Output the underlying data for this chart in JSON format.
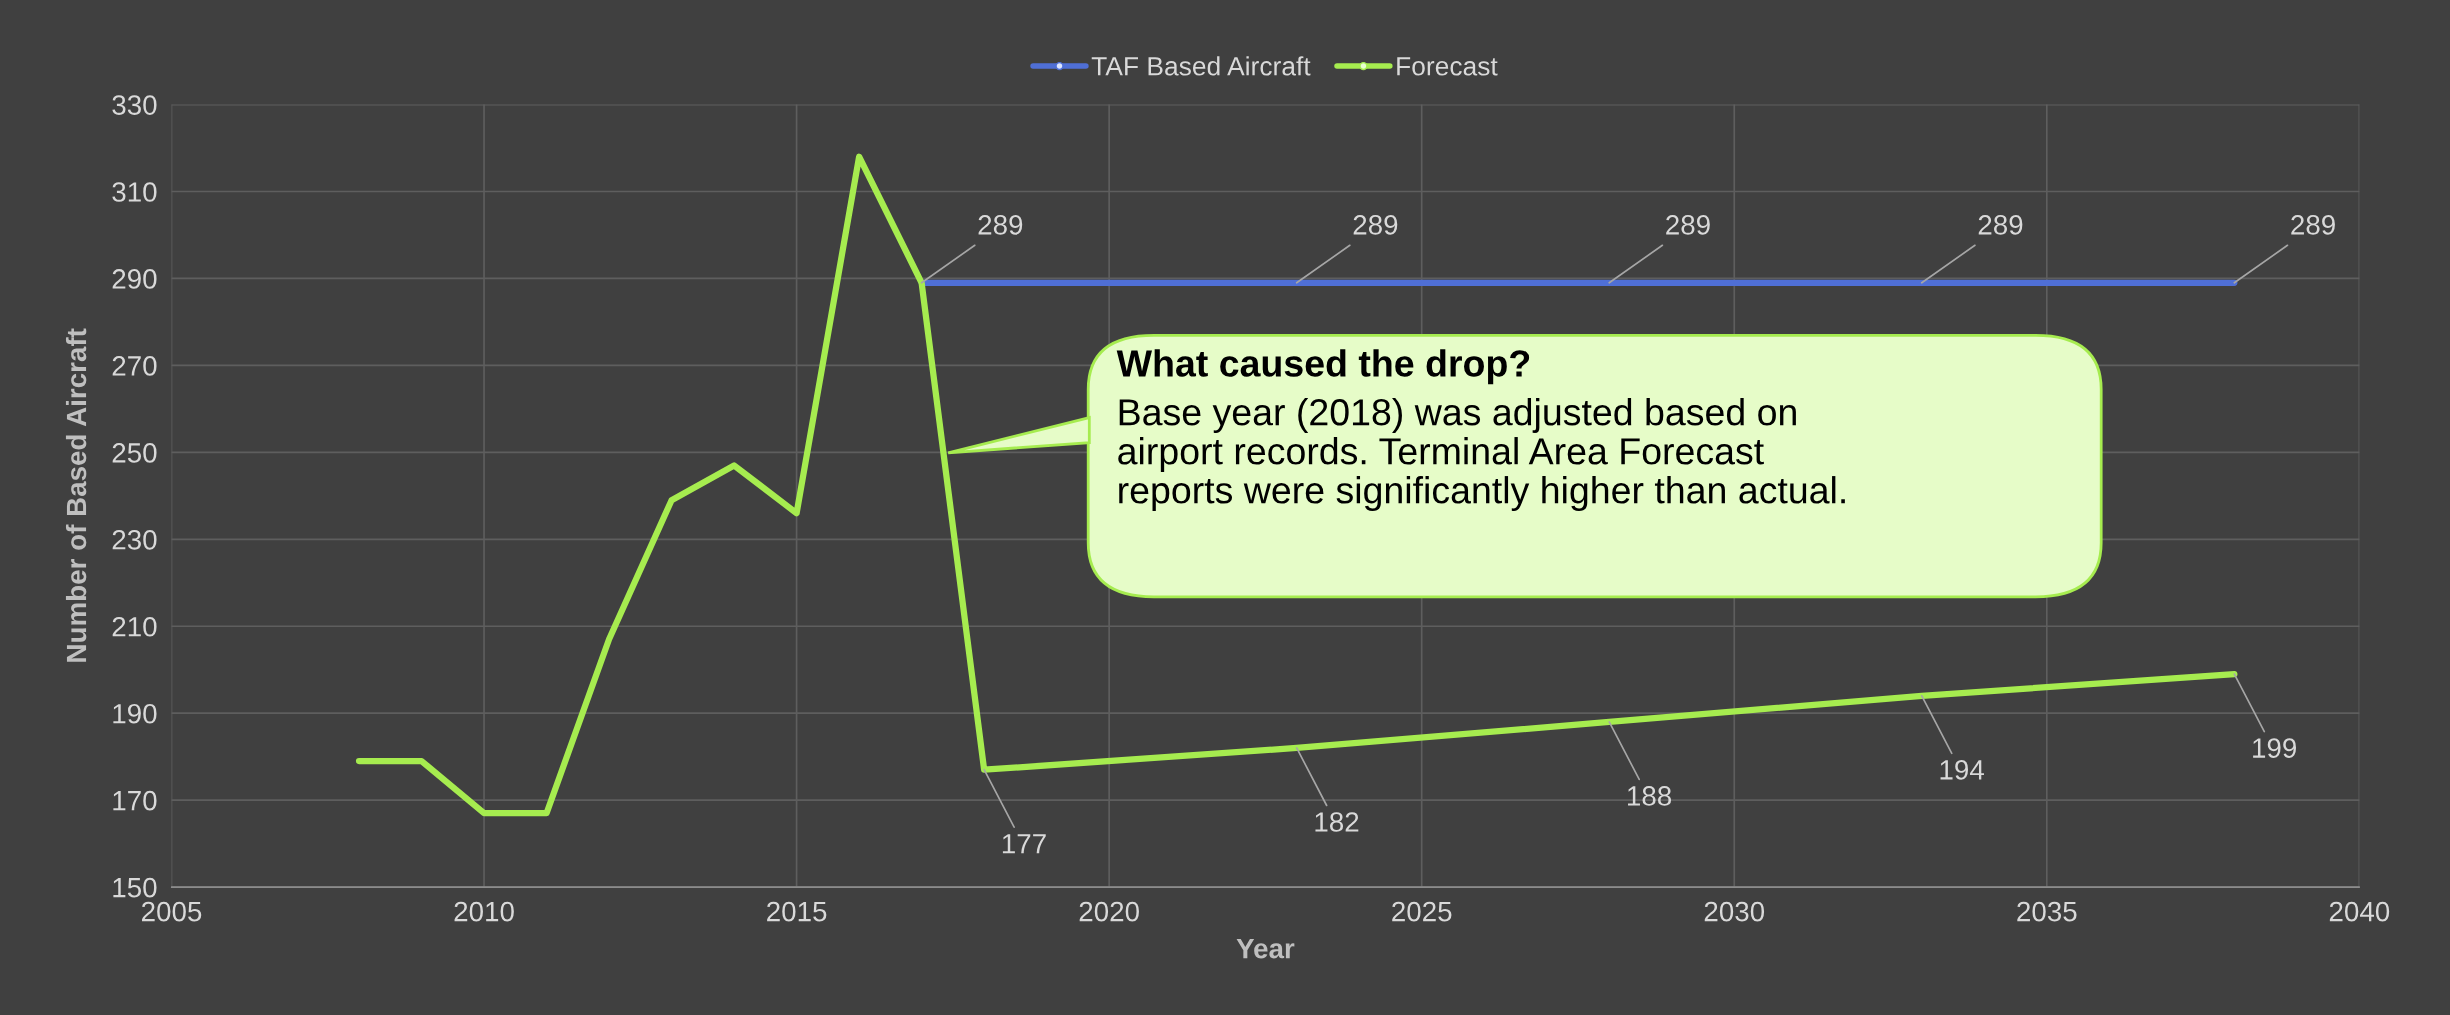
{
  "chart_data": {
    "type": "line",
    "xlabel": "Year",
    "ylabel": "Number of Based Aircraft",
    "xlim": [
      2005,
      2040
    ],
    "xticks": [
      2005,
      2010,
      2015,
      2020,
      2025,
      2030,
      2035,
      2040
    ],
    "ylim": [
      150,
      330
    ],
    "yticks": [
      150,
      170,
      190,
      210,
      230,
      250,
      270,
      290,
      310,
      330
    ],
    "grid": true,
    "legend": "top",
    "line_style": "solid",
    "marker": "none",
    "series": [
      {
        "name": "TAF Based Aircraft",
        "color": "#4f6fd6",
        "x": [
          2017,
          2023,
          2028,
          2033,
          2038
        ],
        "values": [
          289,
          289,
          289,
          289,
          289
        ],
        "value_labels": [
          "289",
          "289",
          "289",
          "289",
          "289"
        ]
      },
      {
        "name": "Forecast",
        "color": "#a6ec4f",
        "x": [
          2008,
          2009,
          2010,
          2011,
          2012,
          2013,
          2014,
          2015,
          2016,
          2017,
          2018,
          2023,
          2028,
          2033,
          2038
        ],
        "values": [
          179,
          179,
          167,
          167,
          207,
          239,
          247,
          236,
          318,
          289,
          177,
          182,
          188,
          194,
          199
        ],
        "value_labels": [
          null,
          null,
          null,
          null,
          null,
          null,
          null,
          null,
          null,
          null,
          "177",
          "182",
          "188",
          "194",
          "199"
        ]
      }
    ],
    "annotations": [
      "What caused the drop?",
      "Base year (2018) was adjusted based on\nairport records. Terminal Area Forecast\nreports were significantly higher than actual."
    ]
  }
}
